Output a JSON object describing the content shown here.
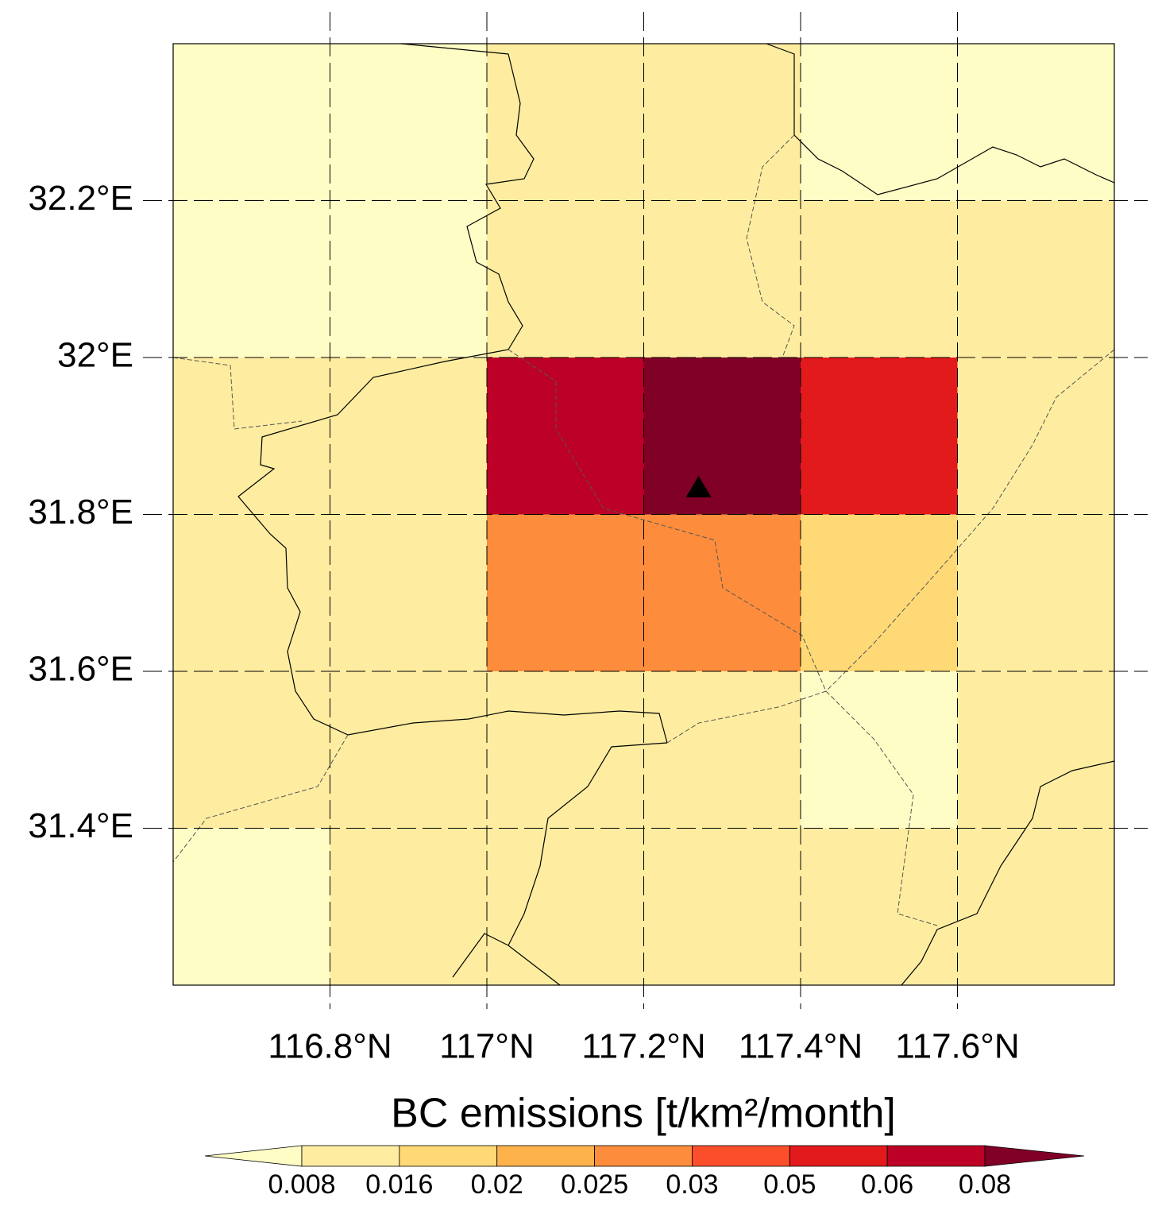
{
  "chart_data": {
    "type": "map",
    "title": "BC emissions [t/km²/month]",
    "xlim": [
      116.6,
      117.8
    ],
    "ylim": [
      31.2,
      32.4
    ],
    "xticks": [
      {
        "value": 116.8,
        "label": "116.8°N"
      },
      {
        "value": 117.0,
        "label": "117°N"
      },
      {
        "value": 117.2,
        "label": "117.2°N"
      },
      {
        "value": 117.4,
        "label": "117.4°N"
      },
      {
        "value": 117.6,
        "label": "117.6°N"
      }
    ],
    "yticks": [
      {
        "value": 32.2,
        "label": "32.2°E"
      },
      {
        "value": 32.0,
        "label": "32°E"
      },
      {
        "value": 31.8,
        "label": "31.8°E"
      },
      {
        "value": 31.6,
        "label": "31.6°E"
      },
      {
        "value": 31.4,
        "label": "31.4°E"
      }
    ],
    "grid": true,
    "lon_edges": [
      116.6,
      116.8,
      117.0,
      117.2,
      117.4,
      117.6,
      117.8
    ],
    "lat_edges": [
      32.4,
      32.2,
      32.0,
      31.8,
      31.6,
      31.4,
      31.2
    ],
    "values": [
      [
        0.006,
        0.006,
        0.012,
        0.012,
        0.006,
        0.006
      ],
      [
        0.006,
        0.006,
        0.012,
        0.012,
        0.012,
        0.012
      ],
      [
        0.012,
        0.012,
        0.07,
        0.09,
        0.055,
        0.012
      ],
      [
        0.012,
        0.012,
        0.027,
        0.027,
        0.018,
        0.012
      ],
      [
        0.012,
        0.012,
        0.012,
        0.012,
        0.006,
        0.012
      ],
      [
        0.006,
        0.012,
        0.012,
        0.012,
        0.012,
        0.012
      ]
    ],
    "levels": [
      0.008,
      0.016,
      0.02,
      0.025,
      0.03,
      0.05,
      0.06,
      0.08
    ],
    "colors": [
      "#fffdc6",
      "#feeda0",
      "#fed976",
      "#feb24c",
      "#fd8d3c",
      "#fc4e2a",
      "#e31a1c",
      "#bd0026",
      "#800026"
    ],
    "marker": {
      "lon": 117.27,
      "lat": 31.835
    }
  }
}
